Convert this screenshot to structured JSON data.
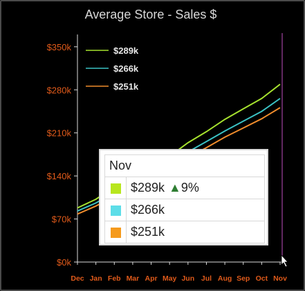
{
  "chart_data": {
    "type": "line",
    "title": "Average Store - Sales $",
    "categories": [
      "Dec",
      "Jan",
      "Feb",
      "Mar",
      "Apr",
      "May",
      "Jun",
      "Jul",
      "Aug",
      "Sep",
      "Oct",
      "Nov"
    ],
    "yticks": [
      "$0k",
      "$70k",
      "$140k",
      "$210k",
      "$280k",
      "$350k"
    ],
    "ytick_values": [
      0,
      70,
      140,
      210,
      280,
      350
    ],
    "ylim": [
      0,
      370
    ],
    "series": [
      {
        "name": "$289k",
        "color": "#a6e22e",
        "values": [
          88,
          102,
          122,
          139,
          152,
          172,
          194,
          212,
          232,
          249,
          266,
          289
        ]
      },
      {
        "name": "$266k",
        "color": "#3bc2c4",
        "values": [
          83,
          96,
          113,
          130,
          143,
          161,
          179,
          196,
          213,
          229,
          245,
          266
        ]
      },
      {
        "name": "$251k",
        "color": "#f08c2c",
        "values": [
          78,
          91,
          107,
          123,
          136,
          153,
          170,
          186,
          203,
          218,
          233,
          251
        ]
      }
    ],
    "legend_position": "top-left",
    "hover_line_color": "#c050c0"
  },
  "tooltip": {
    "header": "Nov",
    "rows": [
      {
        "value": "$289k",
        "color": "#b8e61e",
        "change_arrow": "▲",
        "change": "9%"
      },
      {
        "value": "$266k",
        "color": "#5ddde8"
      },
      {
        "value": "$251k",
        "color": "#f59a1c"
      }
    ]
  },
  "colors": {
    "axis_label": "#e05a1a",
    "title": "#d8d8d8",
    "background": "#000000"
  }
}
